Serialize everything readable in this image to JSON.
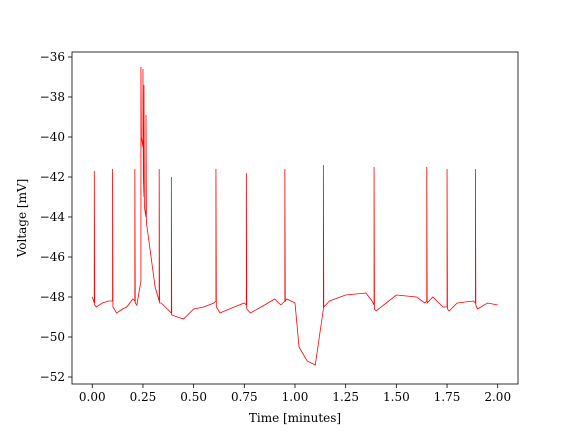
{
  "chart_data": {
    "type": "line",
    "xlabel": "Time [minutes]",
    "ylabel": "Voltage [mV]",
    "color": "#ff0000",
    "x": [
      0,
      0.01,
      0.01,
      0.012,
      0.02,
      0.05,
      0.08,
      0.1,
      0.1,
      0.102,
      0.12,
      0.15,
      0.17,
      0.2,
      0.21,
      0.21,
      0.212,
      0.22,
      0.235,
      0.24,
      0.24,
      0.242,
      0.25,
      0.25,
      0.252,
      0.255,
      0.255,
      0.257,
      0.265,
      0.265,
      0.267,
      0.27,
      0.29,
      0.31,
      0.33,
      0.33,
      0.332,
      0.34,
      0.37,
      0.39,
      0.39,
      0.392,
      0.42,
      0.45,
      0.5,
      0.55,
      0.6,
      0.61,
      0.61,
      0.612,
      0.63,
      0.7,
      0.75,
      0.76,
      0.76,
      0.762,
      0.78,
      0.85,
      0.9,
      0.93,
      0.95,
      0.95,
      0.952,
      0.96,
      1.0,
      1.02,
      1.06,
      1.1,
      1.12,
      1.14,
      1.14,
      1.142,
      1.17,
      1.25,
      1.35,
      1.38,
      1.39,
      1.39,
      1.392,
      1.4,
      1.45,
      1.5,
      1.6,
      1.64,
      1.65,
      1.65,
      1.652,
      1.68,
      1.73,
      1.75,
      1.75,
      1.752,
      1.76,
      1.8,
      1.88,
      1.89,
      1.89,
      1.892,
      1.9,
      1.95,
      2.0
    ],
    "values": [
      -48,
      -48.3,
      -41.7,
      -48.4,
      -48.5,
      -48.3,
      -48.2,
      -48.2,
      -41.6,
      -48.5,
      -48.8,
      -48.6,
      -48.5,
      -48.1,
      -48.2,
      -41.6,
      -48.3,
      -48.4,
      -47.5,
      -47.2,
      -36.5,
      -40,
      -40.5,
      -36.6,
      -42,
      -43,
      -37.4,
      -43.5,
      -44,
      -38.9,
      -44.3,
      -44.5,
      -46,
      -47.5,
      -48.2,
      -41.6,
      -48.3,
      -48.3,
      -48.6,
      -48.8,
      -42.0,
      -48.9,
      -49,
      -49.1,
      -48.6,
      -48.5,
      -48.3,
      -48.2,
      -41.6,
      -48.5,
      -48.8,
      -48.5,
      -48.3,
      -48.4,
      -41.8,
      -48.6,
      -48.8,
      -48.4,
      -48.1,
      -48.4,
      -48.2,
      -41.6,
      -48.2,
      -48.1,
      -48.3,
      -50.5,
      -51.2,
      -51.4,
      -50,
      -48.6,
      -41.4,
      -48.5,
      -48.2,
      -47.9,
      -47.8,
      -48.2,
      -48.4,
      -41.5,
      -48.6,
      -48.7,
      -48.3,
      -47.9,
      -48,
      -48.3,
      -48.2,
      -41.5,
      -48.3,
      -48,
      -48.5,
      -48.5,
      -41.6,
      -48.6,
      -48.7,
      -48.3,
      -48.2,
      -48.3,
      -41.6,
      -48.4,
      -48.6,
      -48.3,
      -48.4
    ],
    "xlim": [
      -0.1,
      2.1
    ],
    "ylim": [
      -52.35,
      -35.75
    ],
    "xticks": [
      {
        "value": 0,
        "label": "0.00"
      },
      {
        "value": 0.25,
        "label": "0.25"
      },
      {
        "value": 0.5,
        "label": "0.50"
      },
      {
        "value": 0.75,
        "label": "0.75"
      },
      {
        "value": 1,
        "label": "1.00"
      },
      {
        "value": 1.25,
        "label": "1.25"
      },
      {
        "value": 1.5,
        "label": "1.50"
      },
      {
        "value": 1.75,
        "label": "1.75"
      },
      {
        "value": 2,
        "label": "2.00"
      }
    ],
    "yticks": [
      {
        "value": -36,
        "label": "−36"
      },
      {
        "value": -38,
        "label": "−38"
      },
      {
        "value": -40,
        "label": "−40"
      },
      {
        "value": -42,
        "label": "−42"
      },
      {
        "value": -44,
        "label": "−44"
      },
      {
        "value": -46,
        "label": "−46"
      },
      {
        "value": -48,
        "label": "−48"
      },
      {
        "value": -50,
        "label": "−50"
      },
      {
        "value": -52,
        "label": "−52"
      }
    ]
  }
}
